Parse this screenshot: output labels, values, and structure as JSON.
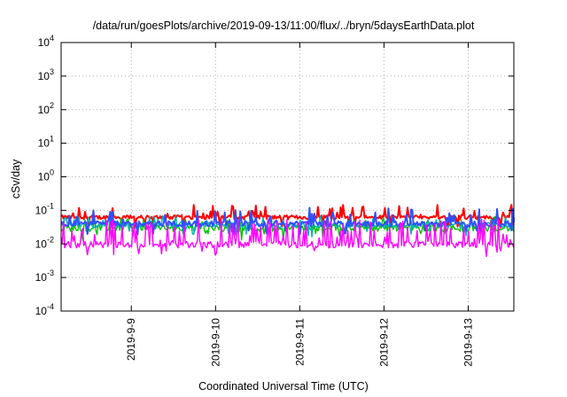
{
  "chart_data": {
    "type": "line",
    "title": "/data/run/goesPlots/archive/2019-09-13/11:00/flux/../bryn/5daysEarthData.plot",
    "xlabel": "Coordinated Universal Time (UTC)",
    "ylabel": "cSv/day",
    "yscale": "log",
    "ylim": [
      0.0001,
      10000
    ],
    "xlim": [
      "2019-09-08T04:00",
      "2019-09-13T13:00"
    ],
    "yticks": [
      {
        "value": 0.0001,
        "mantissa": "10",
        "exp": "-4"
      },
      {
        "value": 0.001,
        "mantissa": "10",
        "exp": "-3"
      },
      {
        "value": 0.01,
        "mantissa": "10",
        "exp": "-2"
      },
      {
        "value": 0.1,
        "mantissa": "10",
        "exp": "-1"
      },
      {
        "value": 1,
        "mantissa": "10",
        "exp": "0"
      },
      {
        "value": 10,
        "mantissa": "10",
        "exp": "1"
      },
      {
        "value": 100,
        "mantissa": "10",
        "exp": "2"
      },
      {
        "value": 1000,
        "mantissa": "10",
        "exp": "3"
      },
      {
        "value": 10000,
        "mantissa": "10",
        "exp": "4"
      }
    ],
    "xticks": [
      {
        "value": "2019-09-09T00:00",
        "label": "2019-9-9"
      },
      {
        "value": "2019-09-10T00:00",
        "label": "2019-9-10"
      },
      {
        "value": "2019-09-11T00:00",
        "label": "2019-9-11"
      },
      {
        "value": "2019-09-12T00:00",
        "label": "2019-9-12"
      },
      {
        "value": "2019-09-13T00:00",
        "label": "2019-9-13"
      }
    ],
    "grid": true,
    "legend": "none",
    "series": [
      {
        "color": "#ff0000",
        "base": 0.062,
        "spread": 0.14,
        "spike_prob": 0.18,
        "spike_max": 0.09,
        "stroke": 2.0
      },
      {
        "color": "#00c000",
        "base": 0.03,
        "spread": 0.25,
        "spike_prob": 0.12,
        "spike_max": 0.03,
        "stroke": 1.4
      },
      {
        "color": "#00b0b0",
        "base": 0.036,
        "spread": 0.2,
        "spike_prob": 0.12,
        "spike_max": 0.03,
        "stroke": 1.4
      },
      {
        "color": "#3050ff",
        "base": 0.04,
        "spread": 0.18,
        "spike_prob": 0.1,
        "spike_max": 0.08,
        "stroke": 2.0
      },
      {
        "color": "#ff00ff",
        "base": 0.0095,
        "spread": 0.22,
        "spike_prob": 0.28,
        "spike_max": 0.045,
        "stroke": 1.4
      }
    ]
  }
}
